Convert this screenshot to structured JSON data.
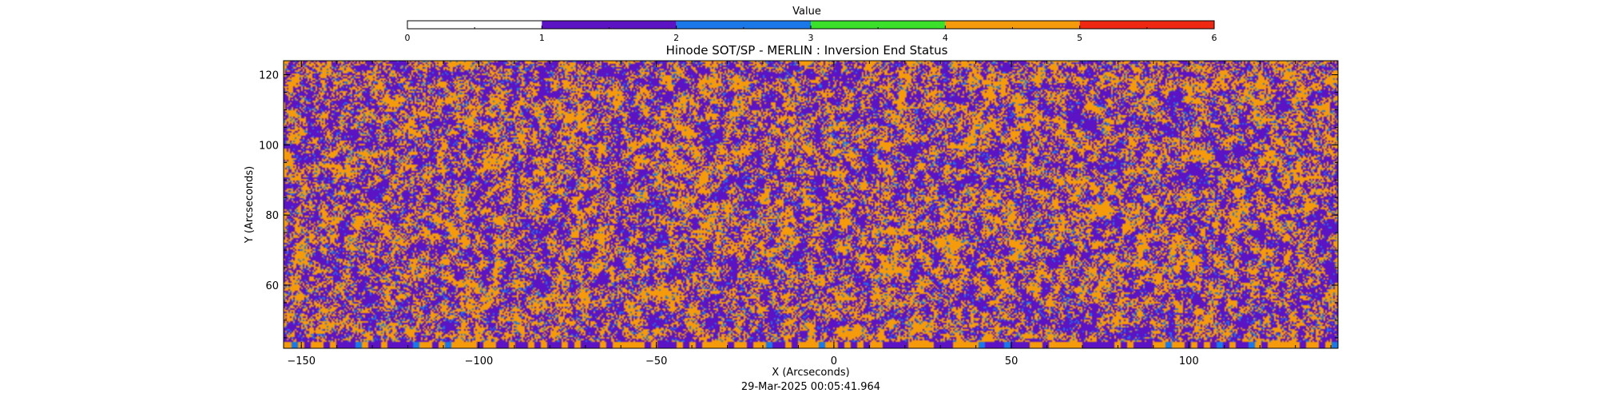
{
  "chart_data": {
    "type": "heatmap",
    "title": "Hinode SOT/SP - MERLIN : Inversion End Status",
    "xlabel": "X (Arcseconds)",
    "ylabel": "Y (Arcseconds)",
    "xlim": [
      -155,
      142
    ],
    "ylim": [
      42,
      124
    ],
    "x_ticks": [
      -150,
      -100,
      -50,
      0,
      50,
      100
    ],
    "x_tick_labels": [
      "−150",
      "−100",
      "−50",
      "0",
      "50",
      "100"
    ],
    "y_ticks": [
      60,
      80,
      100,
      120
    ],
    "y_tick_labels": [
      "60",
      "80",
      "100",
      "120"
    ],
    "timestamp": "29-Mar-2025 00:05:41.964",
    "colorbar": {
      "label": "Value",
      "range": [
        0,
        6
      ],
      "ticks": [
        0,
        1,
        2,
        3,
        4,
        5,
        6
      ],
      "tick_labels": [
        "0",
        "1",
        "2",
        "3",
        "4",
        "5",
        "6"
      ],
      "colors": [
        "#ffffff",
        "#5b13c4",
        "#1b78e8",
        "#3ae02a",
        "#f59a0a",
        "#ee2812"
      ]
    },
    "value_colors": {
      "1": "#5b13c4",
      "2": "#1b78e8",
      "4": "#f59a0a"
    },
    "value_fractions": {
      "1": 0.47,
      "2": 0.08,
      "4": 0.45
    }
  }
}
